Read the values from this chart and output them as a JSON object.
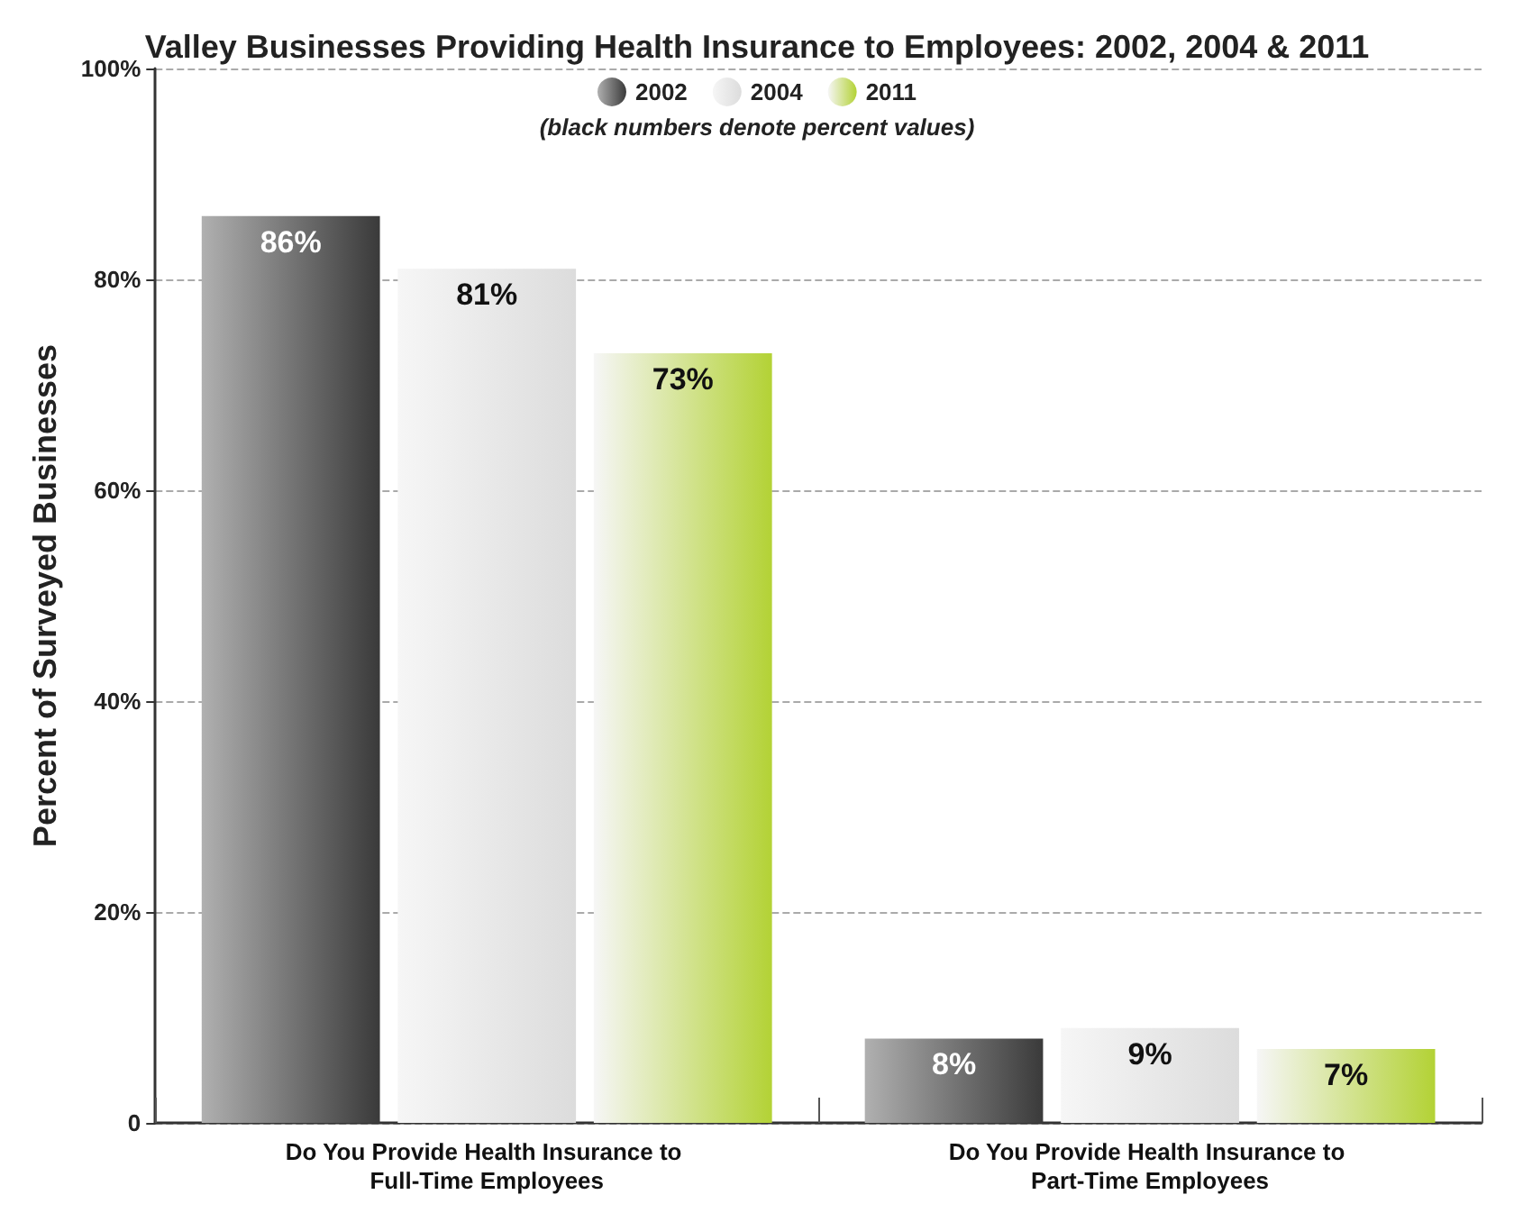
{
  "chart_data": {
    "type": "bar",
    "title": "Valley Businesses Providing Health Insurance to Employees: 2002, 2004 & 2011",
    "ylabel": "Percent of Surveyed Businesses",
    "annotations": [
      "(black numbers denote percent values)"
    ],
    "categories": [
      "Do You Provide Health Insurance to Full-Time Employees",
      "Do You Provide Health Insurance to Part-Time Employees"
    ],
    "series": [
      {
        "name": "2002",
        "color": "#3a3a3a",
        "values": [
          86,
          8
        ],
        "value_labels": [
          "86%",
          "8%"
        ]
      },
      {
        "name": "2004",
        "color": "#dcdcdc",
        "values": [
          81,
          9
        ],
        "value_labels": [
          "81%",
          "9%"
        ]
      },
      {
        "name": "2011",
        "color": "#b3d235",
        "values": [
          73,
          7
        ],
        "value_labels": [
          "73%",
          "7%"
        ]
      }
    ],
    "ylim": [
      0,
      100
    ],
    "yticks": [
      0,
      {
        "value": 20,
        "label": "20%"
      },
      {
        "value": 40,
        "label": "40%"
      },
      {
        "value": 60,
        "label": "60%"
      },
      {
        "value": 80,
        "label": "80%"
      },
      {
        "value": 100,
        "label": "100%"
      }
    ],
    "grid": "y",
    "legend": "top"
  }
}
